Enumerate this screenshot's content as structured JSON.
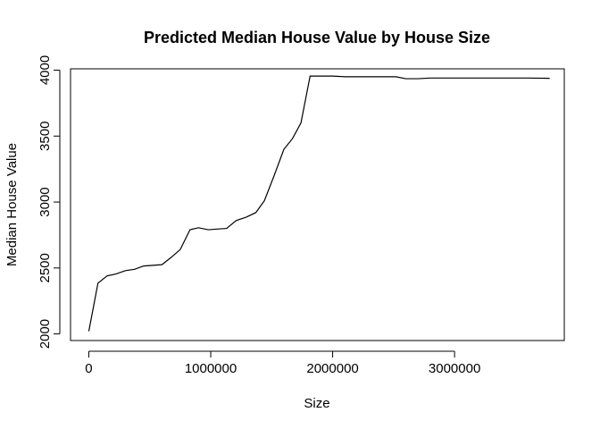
{
  "chart_data": {
    "type": "line",
    "title": "Predicted Median House Value by House Size",
    "xlabel": "Size",
    "ylabel": "Median House Value",
    "xlim": [
      -150000,
      3900000
    ],
    "ylim": [
      1950000,
      4010000
    ],
    "x_ticks": [
      {
        "value": 0,
        "label": "0"
      },
      {
        "value": 1000000,
        "label": "1000000"
      },
      {
        "value": 2000000,
        "label": "2000000"
      },
      {
        "value": 3000000,
        "label": "3000000"
      }
    ],
    "y_ticks": [
      {
        "value": 2000,
        "label": "2000"
      },
      {
        "value": 2500,
        "label": "2500"
      },
      {
        "value": 3000,
        "label": "3000"
      },
      {
        "value": 3500,
        "label": "3500"
      },
      {
        "value": 4000,
        "label": "4000"
      }
    ],
    "grid": false,
    "legend": "none",
    "series": [
      {
        "x": [
          0,
          75000,
          150000,
          225000,
          300000,
          375000,
          450000,
          525000,
          600000,
          675000,
          750000,
          830000,
          900000,
          980000,
          1050000,
          1130000,
          1210000,
          1290000,
          1370000,
          1440000,
          1520000,
          1600000,
          1670000,
          1740000,
          1815000,
          1900000,
          2000000,
          2100000,
          2200000,
          2320000,
          2450000,
          2520000,
          2600000,
          2700000,
          2800000,
          2900000,
          3000000,
          3200000,
          3400000,
          3600000,
          3780000
        ],
        "y": [
          2020,
          2385,
          2440,
          2455,
          2480,
          2490,
          2515,
          2520,
          2525,
          2580,
          2640,
          2790,
          2805,
          2790,
          2795,
          2800,
          2860,
          2885,
          2920,
          3010,
          3200,
          3400,
          3480,
          3600,
          3955,
          3955,
          3955,
          3950,
          3950,
          3950,
          3950,
          3950,
          3935,
          3935,
          3940,
          3940,
          3940,
          3940,
          3940,
          3940,
          3938
        ]
      }
    ]
  }
}
